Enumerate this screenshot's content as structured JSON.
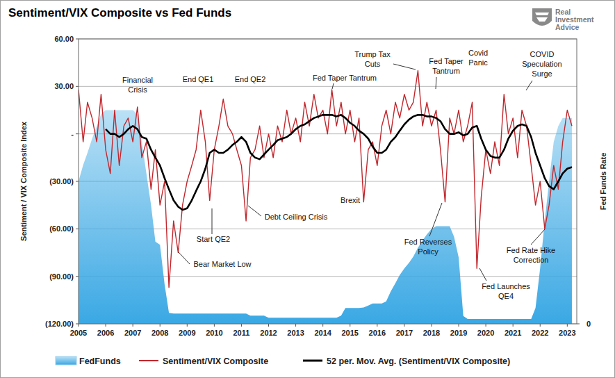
{
  "chart_data": {
    "type": "line",
    "title": "Sentiment/VIX Composite vs Fed Funds",
    "logo": "Real\nInvestment\nAdvice",
    "y_label": "Sentiment / VIX Composite Index",
    "y2_label": "Fed Funds Rate",
    "x": [
      2005,
      2005.17,
      2005.33,
      2005.5,
      2005.67,
      2005.83,
      2006,
      2006.17,
      2006.33,
      2006.5,
      2006.67,
      2006.83,
      2007,
      2007.17,
      2007.33,
      2007.5,
      2007.67,
      2007.83,
      2008,
      2008.17,
      2008.33,
      2008.5,
      2008.67,
      2008.83,
      2009,
      2009.17,
      2009.33,
      2009.5,
      2009.67,
      2009.83,
      2010,
      2010.17,
      2010.33,
      2010.5,
      2010.67,
      2010.83,
      2011,
      2011.17,
      2011.33,
      2011.5,
      2011.67,
      2011.83,
      2012,
      2012.17,
      2012.33,
      2012.5,
      2012.67,
      2012.83,
      2013,
      2013.17,
      2013.33,
      2013.5,
      2013.67,
      2013.83,
      2014,
      2014.17,
      2014.33,
      2014.5,
      2014.67,
      2014.83,
      2015,
      2015.17,
      2015.33,
      2015.5,
      2015.67,
      2015.83,
      2016,
      2016.17,
      2016.33,
      2016.5,
      2016.67,
      2016.83,
      2017,
      2017.17,
      2017.33,
      2017.5,
      2017.67,
      2017.83,
      2018,
      2018.17,
      2018.33,
      2018.5,
      2018.67,
      2018.83,
      2019,
      2019.17,
      2019.33,
      2019.5,
      2019.67,
      2019.83,
      2020,
      2020.17,
      2020.33,
      2020.5,
      2020.67,
      2020.83,
      2021,
      2021.17,
      2021.33,
      2021.5,
      2021.67,
      2021.83,
      2022,
      2022.17,
      2022.33,
      2022.5,
      2022.67,
      2022.83,
      2023,
      2023.17
    ],
    "xlim": [
      2005,
      2023.35
    ],
    "xticks": [
      2005,
      2006,
      2007,
      2008,
      2009,
      2010,
      2011,
      2012,
      2013,
      2014,
      2015,
      2016,
      2017,
      2018,
      2019,
      2020,
      2021,
      2022,
      2023
    ],
    "ylim": [
      -120,
      60
    ],
    "yticks": [
      {
        "value": 60,
        "label": "60.00"
      },
      {
        "value": 30,
        "label": "30.00"
      },
      {
        "value": 0,
        "label": "-"
      },
      {
        "value": -30,
        "label": "(30.00)"
      },
      {
        "value": -60,
        "label": "(60.00)"
      },
      {
        "value": -90,
        "label": "(90.00)"
      },
      {
        "value": -120,
        "label": "(120.00)"
      }
    ],
    "y2lim": [
      0,
      7
    ],
    "y2ticks": [
      0
    ],
    "grid": true,
    "legend": "bottom",
    "annotations": [
      "Financial\nCrisis",
      "End QE1",
      "End QE2",
      "Fed Taper Tantrum",
      "Trump Tax\nCuts",
      "Fed Taper\nTantrum",
      "Covid\nPanic",
      "COVID\nSpeculation\nSurge",
      "Bear Market Low",
      "Start QE2",
      "Debt Ceiling Crisis",
      "Brexit",
      "Fed Reverses\nPolicy",
      "Fed Launches\nQE4",
      "Fed Rate Hike\nCorrection"
    ],
    "series": [
      {
        "name": "FedFunds",
        "type": "area",
        "color": "#3aa8e4",
        "axis": "y2",
        "values": [
          3.5,
          3.9,
          4.2,
          4.55,
          4.85,
          5.15,
          5.25,
          5.25,
          5.25,
          5.25,
          5.25,
          5.25,
          5.25,
          5.15,
          4.47,
          3.69,
          2.92,
          2.02,
          1.94,
          0.97,
          0.27,
          0.25,
          0.25,
          0.25,
          0.25,
          0.25,
          0.25,
          0.25,
          0.25,
          0.25,
          0.25,
          0.25,
          0.25,
          0.25,
          0.25,
          0.25,
          0.25,
          0.25,
          0.2,
          0.2,
          0.2,
          0.2,
          0.15,
          0.15,
          0.15,
          0.15,
          0.15,
          0.15,
          0.15,
          0.15,
          0.15,
          0.15,
          0.15,
          0.15,
          0.15,
          0.15,
          0.15,
          0.15,
          0.2,
          0.39,
          0.39,
          0.39,
          0.39,
          0.4,
          0.45,
          0.5,
          0.5,
          0.5,
          0.55,
          0.8,
          1.0,
          1.2,
          1.36,
          1.5,
          1.65,
          1.87,
          2.05,
          2.2,
          2.33,
          2.4,
          2.4,
          2.4,
          2.4,
          2.14,
          1.63,
          0.19,
          0.12,
          0.12,
          0.12,
          0.12,
          0.12,
          0.12,
          0.12,
          0.12,
          0.12,
          0.12,
          0.12,
          0.12,
          0.12,
          0.12,
          0.12,
          0.39,
          1.36,
          2.53,
          3.5,
          4.47,
          4.86,
          5.06,
          5.06,
          5.06
        ]
      },
      {
        "name": "Sentiment/VIX Composite",
        "type": "line",
        "color": "#c1272d",
        "values": [
          28,
          -5,
          20,
          10,
          -5,
          25,
          -10,
          -25,
          15,
          -20,
          5,
          10,
          -5,
          17,
          -15,
          -5,
          -35,
          -10,
          -45,
          -30,
          -97,
          -55,
          -75,
          -45,
          -30,
          -20,
          -10,
          15,
          -5,
          -42,
          -10,
          5,
          22,
          5,
          0,
          -10,
          -20,
          -55,
          -15,
          -10,
          5,
          -15,
          0,
          -15,
          5,
          -5,
          15,
          0,
          10,
          -5,
          20,
          5,
          25,
          10,
          15,
          0,
          28,
          5,
          20,
          0,
          15,
          -5,
          10,
          -43,
          -10,
          -5,
          -20,
          5,
          15,
          0,
          20,
          10,
          25,
          15,
          20,
          40,
          5,
          20,
          5,
          15,
          -10,
          -43,
          10,
          0,
          15,
          -5,
          5,
          20,
          -85,
          -40,
          -10,
          -25,
          -5,
          -20,
          25,
          0,
          10,
          -15,
          15,
          5,
          -20,
          -45,
          -30,
          -60,
          -45,
          -20,
          -35,
          -5,
          15,
          5
        ]
      },
      {
        "name": "52 per. Mov. Avg. (Sentiment/VIX Composite)",
        "type": "line",
        "color": "#000000",
        "values": [
          null,
          null,
          null,
          null,
          null,
          null,
          3,
          0,
          0,
          -2,
          0,
          3,
          5,
          3,
          -2,
          -3,
          -10,
          -15,
          -20,
          -28,
          -35,
          -42,
          -46,
          -48,
          -47,
          -42,
          -36,
          -30,
          -22,
          -12,
          -10,
          -12,
          -12,
          -10,
          -7,
          -5,
          -2,
          -5,
          -12,
          -15,
          -16,
          -13,
          -10,
          -7,
          -4,
          -3,
          -2,
          0,
          3,
          5,
          6,
          8,
          10,
          11,
          12,
          12,
          12,
          11,
          12,
          10,
          7,
          5,
          2,
          0,
          -3,
          -8,
          -12,
          -12,
          -10,
          -5,
          -2,
          2,
          6,
          9,
          11,
          12,
          12,
          11,
          11,
          10,
          8,
          3,
          0,
          0,
          1,
          -1,
          0,
          4,
          5,
          -3,
          -10,
          -14,
          -15,
          -15,
          -10,
          -3,
          2,
          5,
          6,
          5,
          -2,
          -12,
          -20,
          -28,
          -33,
          -35,
          -30,
          -25,
          -22,
          -21
        ]
      }
    ]
  }
}
